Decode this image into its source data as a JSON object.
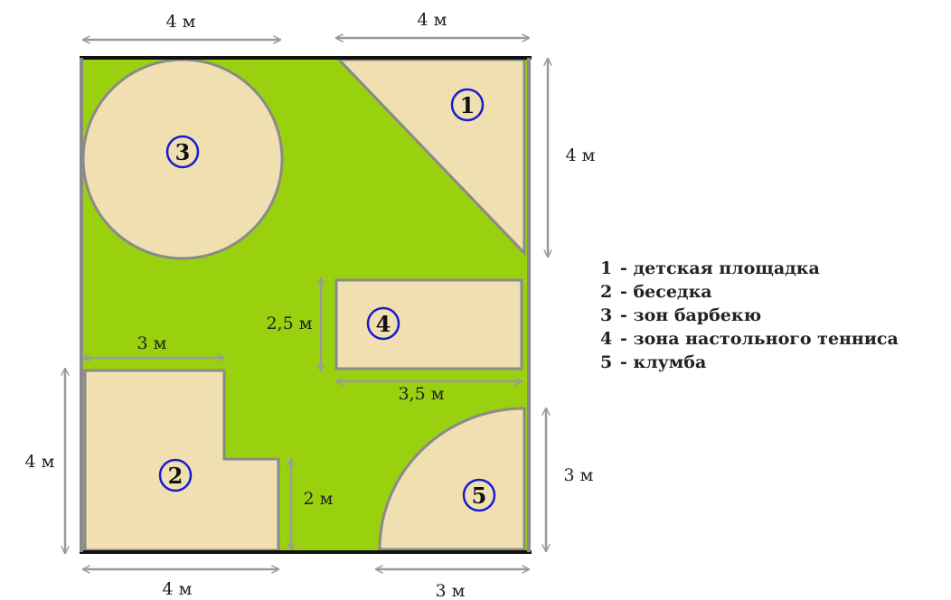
{
  "colors": {
    "lawn": "#99d10f",
    "zone": "#f0dfb0",
    "border": "#8a8a8a",
    "plot_edge": "#111111",
    "arrow": "#9a9a9a",
    "marker": "#1a1ad0"
  },
  "dimensions": {
    "top_left_width": "4 м",
    "top_right_width": "4 м",
    "right_upper_height": "4 м",
    "table_height": "2,5 м",
    "table_width": "3,5 м",
    "gazebo_top_width": "3 м",
    "gazebo_left_height": "4 м",
    "gazebo_step_height": "2 м",
    "bottom_left_width": "4 м",
    "right_lower_height": "3 м",
    "bottom_right_width": "3 м"
  },
  "zones": [
    {
      "id": "1",
      "shape": "triangle"
    },
    {
      "id": "2",
      "shape": "l-shape"
    },
    {
      "id": "3",
      "shape": "circle"
    },
    {
      "id": "4",
      "shape": "rectangle"
    },
    {
      "id": "5",
      "shape": "quarter-circle"
    }
  ],
  "legend": [
    {
      "num": "1",
      "text": "- детская площадка"
    },
    {
      "num": "2",
      "text": "- беседка"
    },
    {
      "num": "3",
      "text": "- зон барбекю"
    },
    {
      "num": "4",
      "text": "- зона настольного тенниса"
    },
    {
      "num": "5",
      "text": "- клумба"
    }
  ]
}
